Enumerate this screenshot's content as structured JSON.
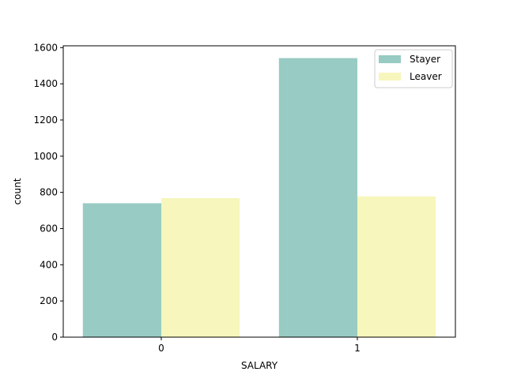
{
  "chart_data": {
    "type": "bar",
    "title": "",
    "xlabel": "SALARY",
    "ylabel": "count",
    "categories": [
      "0",
      "1"
    ],
    "series": [
      {
        "name": "Stayer",
        "color": "#98cbc3",
        "values": [
          740,
          1542
        ]
      },
      {
        "name": "Leaver",
        "color": "#f7f6bc",
        "values": [
          768,
          778
        ]
      }
    ],
    "ylim": [
      0,
      1610
    ],
    "yticks": [
      0,
      200,
      400,
      600,
      800,
      1000,
      1200,
      1400,
      1600
    ],
    "grid": false,
    "legend_position": "top-right"
  }
}
